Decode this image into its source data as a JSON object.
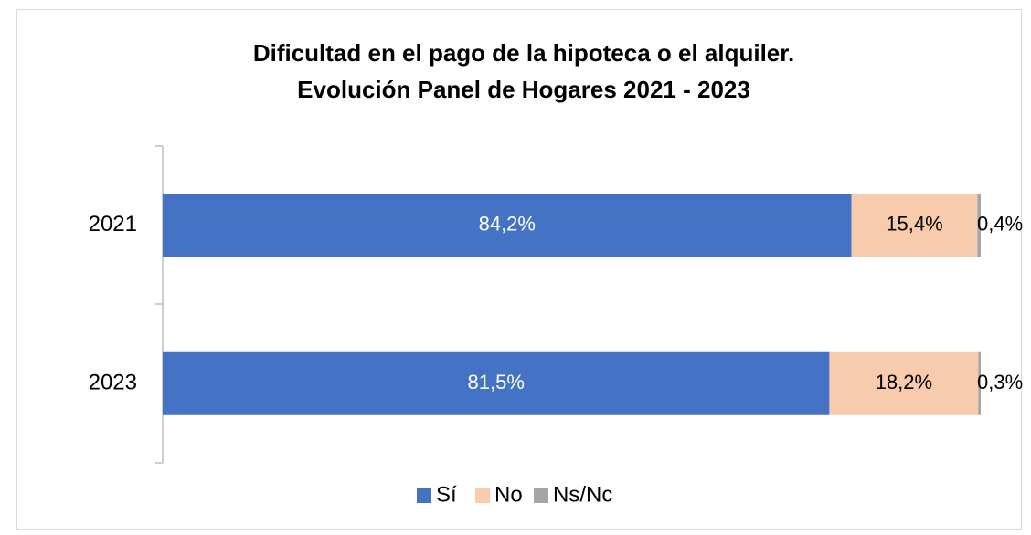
{
  "chart_data": {
    "type": "bar",
    "orientation": "horizontal",
    "stacked": true,
    "title": "Dificultad en el pago de la hipoteca o el alquiler.",
    "subtitle": "Evolución Panel de Hogares 2021 - 2023",
    "categories": [
      "2021",
      "2023"
    ],
    "xlim": [
      0,
      100
    ],
    "legend": "bottom",
    "series": [
      {
        "name": "Sí",
        "color": "#4472c4",
        "values": [
          84.2,
          81.5
        ],
        "value_labels": [
          "84,2%",
          "81,5%"
        ]
      },
      {
        "name": "No",
        "color": "#f8cbad",
        "values": [
          15.4,
          18.2
        ],
        "value_labels": [
          "15,4%",
          "18,2%"
        ]
      },
      {
        "name": "Ns/Nc",
        "color": "#a5a5a5",
        "values": [
          0.4,
          0.3
        ],
        "value_labels": [
          "0,4%",
          "0,3%"
        ]
      }
    ]
  }
}
